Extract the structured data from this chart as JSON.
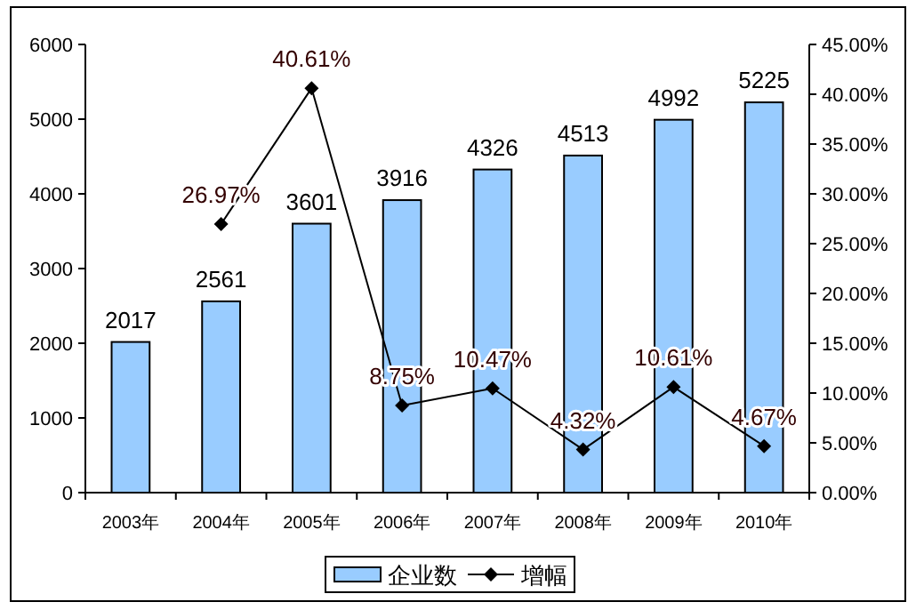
{
  "chart_data": {
    "type": "bar",
    "categories": [
      "2003年",
      "2004年",
      "2005年",
      "2006年",
      "2007年",
      "2008年",
      "2009年",
      "2010年"
    ],
    "series": [
      {
        "name": "企业数",
        "color": "#99ccff",
        "values": [
          2017,
          2561,
          3601,
          3916,
          4326,
          4513,
          4992,
          5225
        ],
        "value_labels": [
          "2017",
          "2561",
          "3601",
          "3916",
          "4326",
          "4513",
          "4992",
          "5225"
        ]
      },
      {
        "name": "增幅",
        "type": "line",
        "axis": "y2",
        "color": "#000000",
        "marker": "diamond",
        "values": [
          null,
          26.97,
          40.61,
          8.75,
          10.47,
          4.32,
          10.61,
          4.67
        ],
        "value_labels": [
          null,
          "26.97%",
          "40.61%",
          "8.75%",
          "10.47%",
          "4.32%",
          "10.61%",
          "4.67%"
        ]
      }
    ],
    "ylim": [
      0,
      6000
    ],
    "yticks": [
      0,
      1000,
      2000,
      3000,
      4000,
      5000,
      6000
    ],
    "y2lim": [
      0,
      45
    ],
    "y2ticks": [
      {
        "value": 0,
        "label": "0.00%"
      },
      {
        "value": 5,
        "label": "5.00%"
      },
      {
        "value": 10,
        "label": "10.00%"
      },
      {
        "value": 15,
        "label": "15.00%"
      },
      {
        "value": 20,
        "label": "20.00%"
      },
      {
        "value": 25,
        "label": "25.00%"
      },
      {
        "value": 30,
        "label": "30.00%"
      },
      {
        "value": 35,
        "label": "35.00%"
      },
      {
        "value": 40,
        "label": "40.00%"
      },
      {
        "value": 45,
        "label": "45.00%"
      }
    ],
    "grid": false,
    "legend": "bottom"
  }
}
